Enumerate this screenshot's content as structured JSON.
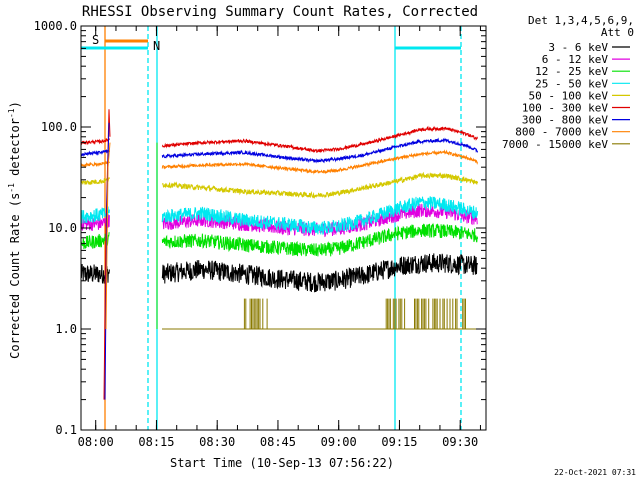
{
  "chart_data": {
    "type": "line",
    "title": "RHESSI Observing Summary Count Rates, Corrected",
    "xlabel": "Start Time (10-Sep-13 07:56:22)",
    "ylabel_main": "Corrected Count Rate (s",
    "ylabel_sup1": "-1",
    "ylabel_mid": " detector",
    "ylabel_sup2": "-1",
    "ylabel_end": ")",
    "y_scale": "log",
    "ylim": [
      0.1,
      1000
    ],
    "xlim_minutes": [
      0,
      100
    ],
    "y_ticks": [
      {
        "value": 1000,
        "label": "1000.0"
      },
      {
        "value": 100,
        "label": "100.0"
      },
      {
        "value": 10,
        "label": "10.0"
      },
      {
        "value": 1,
        "label": "1.0"
      },
      {
        "value": 0.1,
        "label": "0.1"
      }
    ],
    "x_ticks": [
      {
        "minute": 3.63,
        "label": "08:00"
      },
      {
        "minute": 18.63,
        "label": "08:15"
      },
      {
        "minute": 33.63,
        "label": "08:30"
      },
      {
        "minute": 48.63,
        "label": "08:45"
      },
      {
        "minute": 63.63,
        "label": "09:00"
      },
      {
        "minute": 78.63,
        "label": "09:15"
      },
      {
        "minute": 93.63,
        "label": "09:30"
      }
    ],
    "legend_header": [
      "Det 1,3,4,5,6,9,",
      "Att 0"
    ],
    "legend_placement": "top-right, outside plot",
    "series": [
      {
        "name": "3 - 6 keV",
        "color": "#000000",
        "noise": 0.1,
        "points": [
          [
            0,
            3.5
          ],
          [
            5,
            3.5
          ],
          [
            7,
            3.6
          ],
          [
            20,
            3.5
          ],
          [
            30,
            3.9
          ],
          [
            40,
            3.5
          ],
          [
            50,
            3.1
          ],
          [
            58,
            2.9
          ],
          [
            63,
            3.0
          ],
          [
            70,
            3.4
          ],
          [
            78,
            4.2
          ],
          [
            84,
            4.5
          ],
          [
            90,
            4.5
          ],
          [
            95,
            4.3
          ],
          [
            98,
            4.2
          ]
        ]
      },
      {
        "name": "6 - 12 keV",
        "color": "#e000e0",
        "noise": 0.07,
        "points": [
          [
            0,
            11
          ],
          [
            5,
            11
          ],
          [
            7,
            12
          ],
          [
            20,
            11
          ],
          [
            30,
            12
          ],
          [
            40,
            11
          ],
          [
            50,
            10
          ],
          [
            58,
            9.6
          ],
          [
            63,
            9.8
          ],
          [
            70,
            11
          ],
          [
            78,
            13.5
          ],
          [
            84,
            15
          ],
          [
            90,
            14.5
          ],
          [
            95,
            13
          ],
          [
            98,
            12.5
          ]
        ]
      },
      {
        "name": "12 - 25 keV",
        "color": "#00e000",
        "noise": 0.07,
        "points": [
          [
            0,
            7
          ],
          [
            5,
            7.5
          ],
          [
            7,
            8
          ],
          [
            20,
            7.3
          ],
          [
            30,
            7.5
          ],
          [
            40,
            6.8
          ],
          [
            50,
            6.3
          ],
          [
            58,
            6
          ],
          [
            63,
            6.2
          ],
          [
            70,
            7.3
          ],
          [
            78,
            8.8
          ],
          [
            84,
            9.5
          ],
          [
            90,
            9.3
          ],
          [
            95,
            8.8
          ],
          [
            98,
            8.4
          ]
        ]
      },
      {
        "name": "25 - 50 keV",
        "color": "#00e8f0",
        "noise": 0.07,
        "points": [
          [
            0,
            13
          ],
          [
            5,
            13.5
          ],
          [
            7,
            14
          ],
          [
            20,
            13
          ],
          [
            30,
            14
          ],
          [
            40,
            12
          ],
          [
            50,
            11
          ],
          [
            58,
            10
          ],
          [
            63,
            10.2
          ],
          [
            70,
            12
          ],
          [
            78,
            15.5
          ],
          [
            84,
            18
          ],
          [
            90,
            17
          ],
          [
            95,
            15
          ],
          [
            98,
            14
          ]
        ]
      },
      {
        "name": "50 - 100 keV",
        "color": "#d4c800",
        "noise": 0.025,
        "points": [
          [
            0,
            28
          ],
          [
            5,
            29
          ],
          [
            7,
            30
          ],
          [
            20,
            27
          ],
          [
            30,
            25
          ],
          [
            40,
            23
          ],
          [
            50,
            22
          ],
          [
            58,
            21
          ],
          [
            63,
            22
          ],
          [
            70,
            25
          ],
          [
            78,
            29
          ],
          [
            84,
            33
          ],
          [
            90,
            33
          ],
          [
            95,
            30
          ],
          [
            98,
            28
          ]
        ]
      },
      {
        "name": "100 - 300 keV",
        "color": "#e00000",
        "noise": 0.015,
        "points": [
          [
            0,
            70
          ],
          [
            5,
            72
          ],
          [
            7,
            75
          ],
          [
            20,
            65
          ],
          [
            30,
            70
          ],
          [
            40,
            73
          ],
          [
            50,
            65
          ],
          [
            58,
            58
          ],
          [
            63,
            60
          ],
          [
            70,
            68
          ],
          [
            78,
            82
          ],
          [
            84,
            95
          ],
          [
            90,
            97
          ],
          [
            95,
            86
          ],
          [
            98,
            76
          ]
        ]
      },
      {
        "name": "300 - 800 keV",
        "color": "#0000e0",
        "noise": 0.015,
        "points": [
          [
            0,
            54
          ],
          [
            5,
            56
          ],
          [
            7,
            58
          ],
          [
            20,
            51
          ],
          [
            30,
            54
          ],
          [
            40,
            56
          ],
          [
            50,
            50
          ],
          [
            58,
            46
          ],
          [
            63,
            48
          ],
          [
            70,
            53
          ],
          [
            78,
            64
          ],
          [
            84,
            72
          ],
          [
            90,
            74
          ],
          [
            95,
            66
          ],
          [
            98,
            58
          ]
        ]
      },
      {
        "name": "800 - 7000 keV",
        "color": "#ff8000",
        "noise": 0.015,
        "points": [
          [
            0,
            42
          ],
          [
            5,
            43
          ],
          [
            7,
            45
          ],
          [
            20,
            40
          ],
          [
            30,
            42
          ],
          [
            40,
            43
          ],
          [
            50,
            39
          ],
          [
            58,
            36
          ],
          [
            63,
            37
          ],
          [
            70,
            42
          ],
          [
            78,
            49
          ],
          [
            84,
            54
          ],
          [
            90,
            56
          ],
          [
            95,
            50
          ],
          [
            98,
            45
          ]
        ]
      },
      {
        "name": "7000 - 15000 keV",
        "color": "#8a7a00",
        "noise": 0,
        "points": [
          [
            20,
            1
          ],
          [
            98,
            1
          ]
        ]
      }
    ],
    "annotations": [
      {
        "label": "S",
        "color": "#ff8000"
      },
      {
        "label": "N",
        "color": "#00e8f0"
      }
    ],
    "footer": "22-Oct-2021 07:31"
  }
}
